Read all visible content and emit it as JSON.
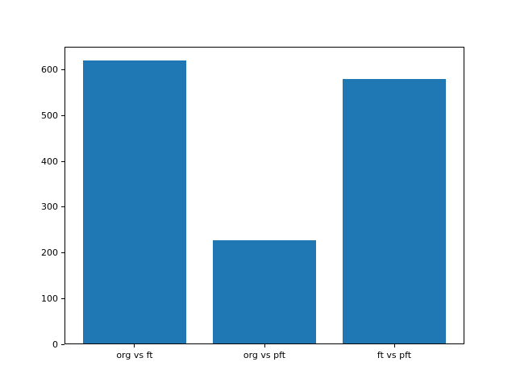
{
  "chart_data": {
    "type": "bar",
    "title": "",
    "xlabel": "",
    "ylabel": "",
    "categories": [
      "org vs ft",
      "org vs pft",
      "ft vs pft"
    ],
    "values": [
      620,
      228,
      580
    ],
    "yticks": [
      0,
      100,
      200,
      300,
      400,
      500,
      600
    ],
    "ylim": [
      0,
      651
    ],
    "xlim": [
      -0.54,
      2.54
    ],
    "bar_width": 0.8,
    "bar_color": "#1f77b4",
    "axis_color": "#000000",
    "background_color": "#ffffff",
    "grid": false,
    "legend": null
  }
}
